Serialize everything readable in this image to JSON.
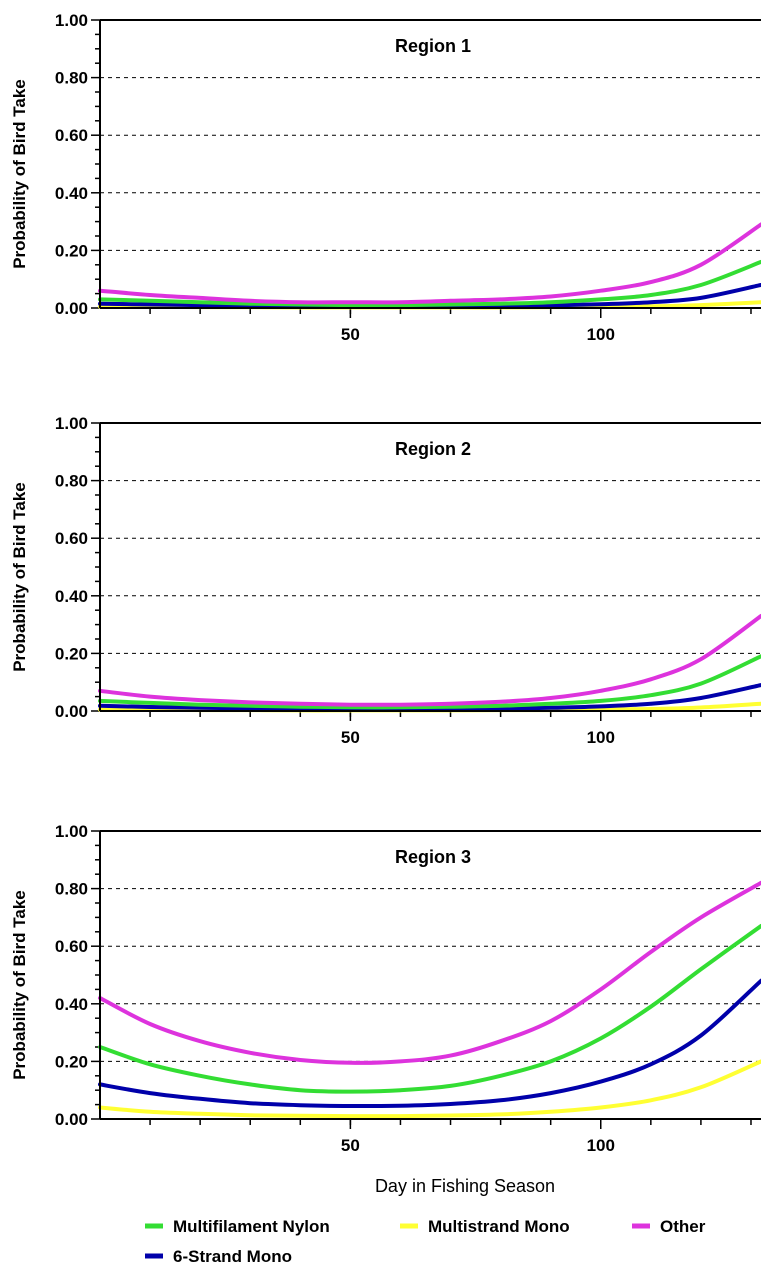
{
  "chart_data": [
    {
      "type": "line",
      "title": "Region 1",
      "xlabel": "",
      "ylabel": "Probability of Bird Take",
      "xlim": [
        0,
        132
      ],
      "ylim": [
        0,
        1
      ],
      "x_ticks": [
        "50",
        "100"
      ],
      "y_ticks": [
        "0.00",
        "0.20",
        "0.40",
        "0.60",
        "0.80",
        "1.00"
      ],
      "grid": "horizontal dashed",
      "x": [
        0,
        10,
        20,
        30,
        40,
        50,
        60,
        70,
        80,
        90,
        100,
        110,
        120,
        132
      ],
      "series": [
        {
          "name": "Multifilament Nylon",
          "values": [
            0.03,
            0.025,
            0.02,
            0.015,
            0.012,
            0.01,
            0.01,
            0.012,
            0.015,
            0.02,
            0.03,
            0.045,
            0.08,
            0.16
          ]
        },
        {
          "name": "Multistrand Mono",
          "values": [
            0.005,
            0.004,
            0.003,
            0.003,
            0.002,
            0.002,
            0.002,
            0.002,
            0.002,
            0.003,
            0.004,
            0.006,
            0.01,
            0.02
          ]
        },
        {
          "name": "Other",
          "values": [
            0.06,
            0.045,
            0.035,
            0.025,
            0.02,
            0.02,
            0.02,
            0.025,
            0.03,
            0.04,
            0.06,
            0.09,
            0.15,
            0.29
          ]
        },
        {
          "name": "6-Strand Mono",
          "values": [
            0.015,
            0.012,
            0.01,
            0.008,
            0.006,
            0.005,
            0.005,
            0.006,
            0.007,
            0.009,
            0.013,
            0.02,
            0.035,
            0.08
          ]
        }
      ]
    },
    {
      "type": "line",
      "title": "Region 2",
      "xlabel": "",
      "ylabel": "Probability of Bird Take",
      "xlim": [
        0,
        132
      ],
      "ylim": [
        0,
        1
      ],
      "x_ticks": [
        "50",
        "100"
      ],
      "y_ticks": [
        "0.00",
        "0.20",
        "0.40",
        "0.60",
        "0.80",
        "1.00"
      ],
      "grid": "horizontal dashed",
      "x": [
        0,
        10,
        20,
        30,
        40,
        50,
        60,
        70,
        80,
        90,
        100,
        110,
        120,
        132
      ],
      "series": [
        {
          "name": "Multifilament Nylon",
          "values": [
            0.035,
            0.028,
            0.022,
            0.018,
            0.015,
            0.013,
            0.013,
            0.015,
            0.018,
            0.025,
            0.035,
            0.055,
            0.095,
            0.19
          ]
        },
        {
          "name": "Multistrand Mono",
          "values": [
            0.005,
            0.004,
            0.003,
            0.003,
            0.002,
            0.002,
            0.002,
            0.002,
            0.003,
            0.003,
            0.005,
            0.007,
            0.012,
            0.025
          ]
        },
        {
          "name": "Other",
          "values": [
            0.07,
            0.05,
            0.038,
            0.03,
            0.025,
            0.022,
            0.022,
            0.025,
            0.032,
            0.045,
            0.07,
            0.11,
            0.18,
            0.33
          ]
        },
        {
          "name": "6-Strand Mono",
          "values": [
            0.018,
            0.014,
            0.011,
            0.009,
            0.007,
            0.006,
            0.006,
            0.007,
            0.008,
            0.011,
            0.016,
            0.025,
            0.045,
            0.09
          ]
        }
      ]
    },
    {
      "type": "line",
      "title": "Region 3",
      "xlabel": "Day in Fishing Season",
      "ylabel": "Probability of Bird Take",
      "xlim": [
        0,
        132
      ],
      "ylim": [
        0,
        1
      ],
      "x_ticks": [
        "50",
        "100"
      ],
      "y_ticks": [
        "0.00",
        "0.20",
        "0.40",
        "0.60",
        "0.80",
        "1.00"
      ],
      "grid": "horizontal dashed",
      "x": [
        0,
        10,
        20,
        30,
        40,
        50,
        60,
        70,
        80,
        90,
        100,
        110,
        120,
        132
      ],
      "series": [
        {
          "name": "Multifilament Nylon",
          "values": [
            0.25,
            0.19,
            0.15,
            0.12,
            0.1,
            0.095,
            0.1,
            0.115,
            0.15,
            0.2,
            0.28,
            0.39,
            0.52,
            0.67
          ]
        },
        {
          "name": "Multistrand Mono",
          "values": [
            0.04,
            0.025,
            0.018,
            0.013,
            0.011,
            0.01,
            0.01,
            0.012,
            0.016,
            0.025,
            0.04,
            0.065,
            0.11,
            0.2
          ]
        },
        {
          "name": "Other",
          "values": [
            0.42,
            0.33,
            0.27,
            0.23,
            0.205,
            0.195,
            0.2,
            0.22,
            0.27,
            0.34,
            0.45,
            0.58,
            0.7,
            0.82
          ]
        },
        {
          "name": "6-Strand Mono",
          "values": [
            0.12,
            0.09,
            0.07,
            0.055,
            0.048,
            0.045,
            0.046,
            0.052,
            0.065,
            0.09,
            0.13,
            0.19,
            0.29,
            0.48
          ]
        }
      ]
    }
  ],
  "colors": {
    "Multifilament Nylon": "#33dd33",
    "Multistrand Mono": "#ffff33",
    "Other": "#dd33dd",
    "6-Strand Mono": "#0000aa",
    "axis": "#000000",
    "grid": "#000000"
  },
  "legend": {
    "placement": "bottom",
    "items": [
      {
        "label": "Multifilament Nylon",
        "color": "#33dd33"
      },
      {
        "label": "Multistrand Mono",
        "color": "#ffff33"
      },
      {
        "label": "Other",
        "color": "#dd33dd"
      },
      {
        "label": "6-Strand Mono",
        "color": "#0000aa"
      }
    ]
  }
}
